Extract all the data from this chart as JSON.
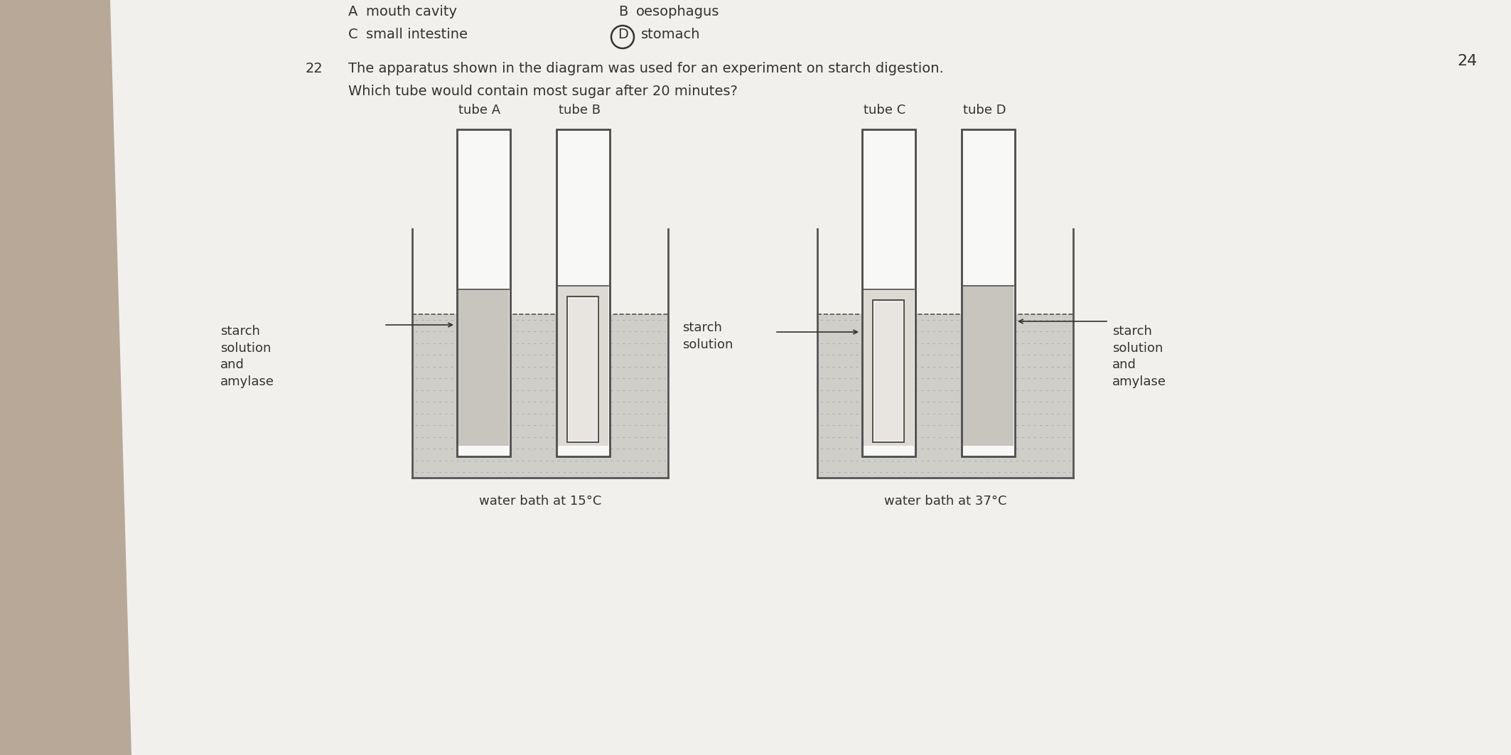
{
  "bg_color": "#b8a898",
  "paper_color": "#f2f0ed",
  "question_number": "22",
  "question_text": "The apparatus shown in the diagram was used for an experiment on starch digestion.",
  "question_text2": "Which tube would contain most sugar after 20 minutes?",
  "page_number": "24",
  "header_A_text": "mouth cavity",
  "header_B_text": "oesophagus",
  "header_C_text": "small intestine",
  "header_D_text": "stomach",
  "label_left": "starch\nsolution\nand\namylase",
  "label_middle": "starch\nsolution",
  "label_right": "starch\nsolution\nand\namylase",
  "bath_label_left": "water bath at 15°C",
  "bath_label_right": "water bath at 37°C",
  "tube_label_A": "tube A",
  "tube_label_B": "tube B",
  "tube_label_C": "tube C",
  "tube_label_D": "tube D",
  "bath_fill": "#d0cec8",
  "bath_border": "#555555",
  "tube_fill_white": "#f8f8f6",
  "tube_fill_amylase": "#c8c5be",
  "tube_fill_starch": "#dddad4",
  "tube_fill_inner": "#e8e5e0",
  "tube_border": "#505050",
  "text_color": "#333333",
  "line_color": "#555555"
}
